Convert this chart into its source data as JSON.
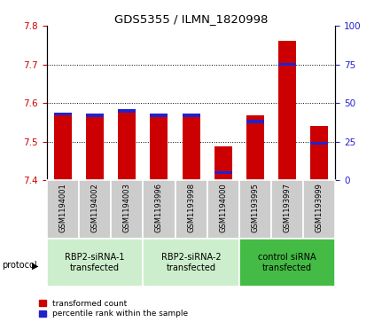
{
  "title": "GDS5355 / ILMN_1820998",
  "samples": [
    "GSM1194001",
    "GSM1194002",
    "GSM1194003",
    "GSM1193996",
    "GSM1193998",
    "GSM1194000",
    "GSM1193995",
    "GSM1193997",
    "GSM1193999"
  ],
  "transformed_counts": [
    7.575,
    7.57,
    7.585,
    7.565,
    7.568,
    7.487,
    7.568,
    7.762,
    7.54
  ],
  "percentile_ranks": [
    43,
    42,
    45,
    42,
    42,
    5,
    38,
    75,
    24
  ],
  "ylim_left": [
    7.4,
    7.8
  ],
  "ylim_right": [
    0,
    100
  ],
  "yticks_left": [
    7.4,
    7.5,
    7.6,
    7.7,
    7.8
  ],
  "yticks_right": [
    0,
    25,
    50,
    75,
    100
  ],
  "bar_color_red": "#cc0000",
  "bar_color_blue": "#2222cc",
  "bar_width": 0.55,
  "protocols": [
    {
      "label": "RBP2-siRNA-1\ntransfected",
      "indices": [
        0,
        1,
        2
      ],
      "color": "#cceecc"
    },
    {
      "label": "RBP2-siRNA-2\ntransfected",
      "indices": [
        3,
        4,
        5
      ],
      "color": "#cceecc"
    },
    {
      "label": "control siRNA\ntransfected",
      "indices": [
        6,
        7,
        8
      ],
      "color": "#44bb44"
    }
  ],
  "legend_red_label": "transformed count",
  "legend_blue_label": "percentile rank within the sample",
  "protocol_label": "protocol",
  "background_color": "#ffffff",
  "plot_bg_color": "#ffffff",
  "tick_color_left": "#cc0000",
  "tick_color_right": "#2222cc",
  "sample_bg_color": "#cccccc"
}
